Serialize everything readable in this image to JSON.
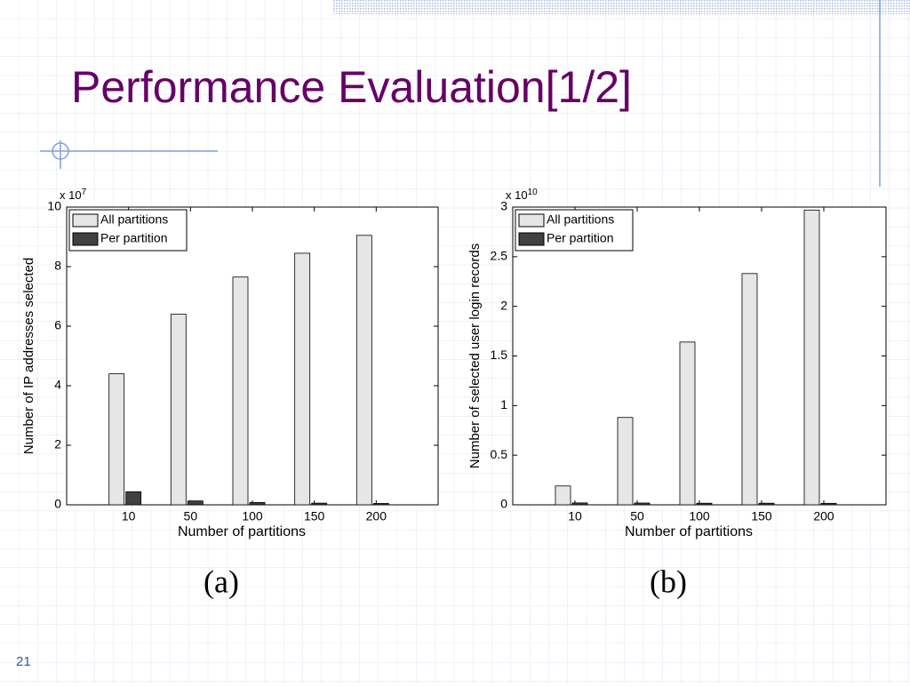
{
  "title": "Performance Evaluation[1/2]",
  "page_number": "21",
  "chart_data": [
    {
      "type": "bar",
      "caption": "(a)",
      "x_label": "Number of partitions",
      "y_label": "Number of IP addresses selected",
      "y_multiplier": "x 10",
      "y_multiplier_exponent": "7",
      "categories": [
        "10",
        "50",
        "100",
        "150",
        "200"
      ],
      "series": [
        {
          "name": "All partitions",
          "color": "#e6e6e6",
          "values": [
            4.4,
            6.4,
            7.65,
            8.45,
            9.05
          ]
        },
        {
          "name": "Per partition",
          "color": "#404040",
          "values": [
            0.44,
            0.13,
            0.077,
            0.056,
            0.045
          ]
        }
      ],
      "ylim": [
        0,
        10
      ],
      "yticks": [
        0,
        2,
        4,
        6,
        8,
        10
      ],
      "legend": "upper left"
    },
    {
      "type": "bar",
      "caption": "(b)",
      "x_label": "Number of partitions",
      "y_label": "Number of selected user login records",
      "y_multiplier": "x 10",
      "y_multiplier_exponent": "10",
      "categories": [
        "10",
        "50",
        "100",
        "150",
        "200"
      ],
      "series": [
        {
          "name": "All partitions",
          "color": "#e6e6e6",
          "values": [
            0.19,
            0.88,
            1.64,
            2.33,
            2.97
          ]
        },
        {
          "name": "Per partition",
          "color": "#404040",
          "values": [
            0.019,
            0.018,
            0.016,
            0.016,
            0.015
          ]
        }
      ],
      "ylim": [
        0,
        3
      ],
      "yticks": [
        0,
        0.5,
        1,
        1.5,
        2,
        2.5,
        3
      ],
      "legend": "upper left"
    }
  ]
}
